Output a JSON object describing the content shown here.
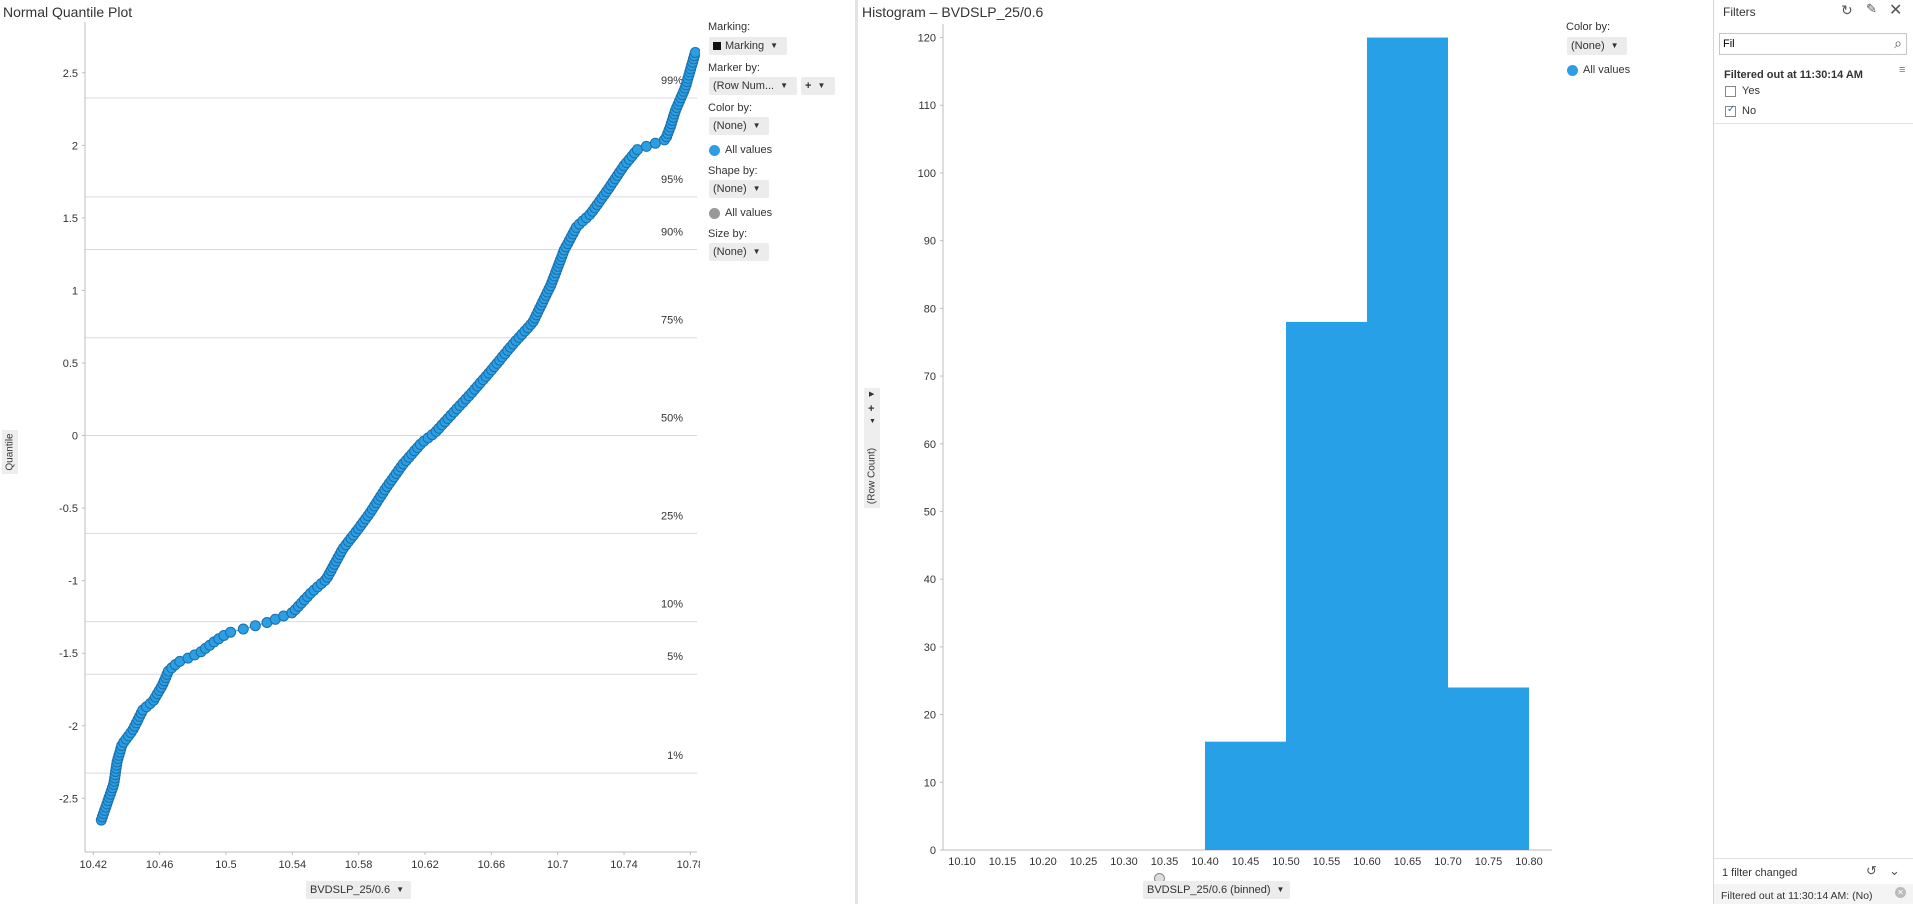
{
  "qq_panel": {
    "title": "Normal Quantile Plot",
    "y_axis_label": "Quantile",
    "x_axis_selector": "BVDSLP_25/0.6",
    "percentile_labels": [
      "99%",
      "95%",
      "90%",
      "75%",
      "50%",
      "25%",
      "10%",
      "5%",
      "1%"
    ],
    "legend": {
      "marking_label": "Marking:",
      "marking_value": "Marking",
      "marker_by_label": "Marker by:",
      "marker_by_value": "(Row Num...",
      "marker_plus": "+",
      "color_by_label": "Color by:",
      "color_by_value": "(None)",
      "color_all_values": "All values",
      "shape_by_label": "Shape by:",
      "shape_by_value": "(None)",
      "shape_all_values": "All values",
      "size_by_label": "Size by:",
      "size_by_value": "(None)"
    }
  },
  "hist_panel": {
    "title": "Histogram – BVDSLP_25/0.6",
    "y_axis_label": "(Row Count)",
    "x_axis_selector": "BVDSLP_25/0.6 (binned)",
    "legend": {
      "color_by_label": "Color by:",
      "color_by_value": "(None)",
      "all_values": "All values"
    }
  },
  "filters": {
    "title": "Filters",
    "search_value": "Fil",
    "group_title": "Filtered out at 11:30:14 AM",
    "options": [
      {
        "label": "Yes",
        "checked": false
      },
      {
        "label": "No",
        "checked": true
      }
    ],
    "footer_changed": "1 filter changed",
    "footer_status": "Filtered out at 11:30:14 AM: (No)"
  },
  "colors": {
    "accent": "#2b9fe6",
    "marker_stroke": "#1a6fa8",
    "bar": "#27a0e8",
    "grid": "#d9d9d9",
    "axis": "#bdbdbd",
    "gray_marker": "#999999",
    "marking": "#111111"
  },
  "chart_data": [
    {
      "type": "scatter",
      "title": "Normal Quantile Plot",
      "xlabel": "BVDSLP_25/0.6",
      "ylabel": "Quantile",
      "xlim": [
        10.415,
        10.784
      ],
      "ylim": [
        -2.87,
        2.85
      ],
      "xticks": [
        10.42,
        10.46,
        10.5,
        10.54,
        10.58,
        10.62,
        10.66,
        10.7,
        10.74,
        10.78
      ],
      "yticks": [
        -2.5,
        -2,
        -1.5,
        -1,
        -0.5,
        0,
        0.5,
        1,
        1.5,
        2,
        2.5
      ],
      "percentile_lines": [
        {
          "label": "99%",
          "z": 2.326
        },
        {
          "label": "95%",
          "z": 1.645
        },
        {
          "label": "90%",
          "z": 1.282
        },
        {
          "label": "75%",
          "z": 0.674
        },
        {
          "label": "50%",
          "z": 0
        },
        {
          "label": "25%",
          "z": -0.674
        },
        {
          "label": "10%",
          "z": -1.282
        },
        {
          "label": "5%",
          "z": -1.645
        },
        {
          "label": "1%",
          "z": -2.326
        }
      ],
      "anchors": [
        [
          10.4248,
          -2.65
        ],
        [
          10.4324,
          -2.4
        ],
        [
          10.4343,
          -2.25
        ],
        [
          10.4373,
          -2.13
        ],
        [
          10.4438,
          -2.03
        ],
        [
          10.4499,
          -1.89
        ],
        [
          10.4561,
          -1.83
        ],
        [
          10.4617,
          -1.72
        ],
        [
          10.4654,
          -1.62
        ],
        [
          10.4713,
          -1.56
        ],
        [
          10.478,
          -1.53
        ],
        [
          10.4849,
          -1.49
        ],
        [
          10.4943,
          -1.41
        ],
        [
          10.5012,
          -1.36
        ],
        [
          10.5115,
          -1.33
        ],
        [
          10.5244,
          -1.29
        ],
        [
          10.5401,
          -1.22
        ],
        [
          10.5516,
          -1.08
        ],
        [
          10.5605,
          -0.99
        ],
        [
          10.5705,
          -0.78
        ],
        [
          10.58,
          -0.64
        ],
        [
          10.587,
          -0.53
        ],
        [
          10.596,
          -0.37
        ],
        [
          10.6065,
          -0.2
        ],
        [
          10.618,
          -0.05
        ],
        [
          10.626,
          0.02
        ],
        [
          10.634,
          0.12
        ],
        [
          10.647,
          0.28
        ],
        [
          10.66,
          0.45
        ],
        [
          10.673,
          0.63
        ],
        [
          10.685,
          0.78
        ],
        [
          10.696,
          1.04
        ],
        [
          10.704,
          1.28
        ],
        [
          10.7115,
          1.44
        ],
        [
          10.72,
          1.53
        ],
        [
          10.73,
          1.69
        ],
        [
          10.74,
          1.86
        ],
        [
          10.748,
          1.97
        ],
        [
          10.765,
          2.04
        ],
        [
          10.768,
          2.13
        ],
        [
          10.771,
          2.24
        ],
        [
          10.777,
          2.4
        ],
        [
          10.783,
          2.64
        ]
      ],
      "n_points": 238
    },
    {
      "type": "bar",
      "title": "Histogram – BVDSLP_25/0.6",
      "xlabel": "BVDSLP_25/0.6 (binned)",
      "ylabel": "(Row Count)",
      "x_tick_labels": [
        "10.10",
        "10.15",
        "10.20",
        "10.25",
        "10.30",
        "10.35",
        "10.40",
        "10.45",
        "10.50",
        "10.55",
        "10.60",
        "10.65",
        "10.70",
        "10.75",
        "10.80"
      ],
      "yticks": [
        0,
        10,
        20,
        30,
        40,
        50,
        60,
        70,
        80,
        90,
        100,
        110,
        120
      ],
      "ylim": [
        0,
        122
      ],
      "bins": [
        {
          "from": 10.4,
          "to": 10.5,
          "count": 16
        },
        {
          "from": 10.5,
          "to": 10.6,
          "count": 78
        },
        {
          "from": 10.6,
          "to": 10.7,
          "count": 120
        },
        {
          "from": 10.7,
          "to": 10.8,
          "count": 24
        }
      ]
    }
  ]
}
